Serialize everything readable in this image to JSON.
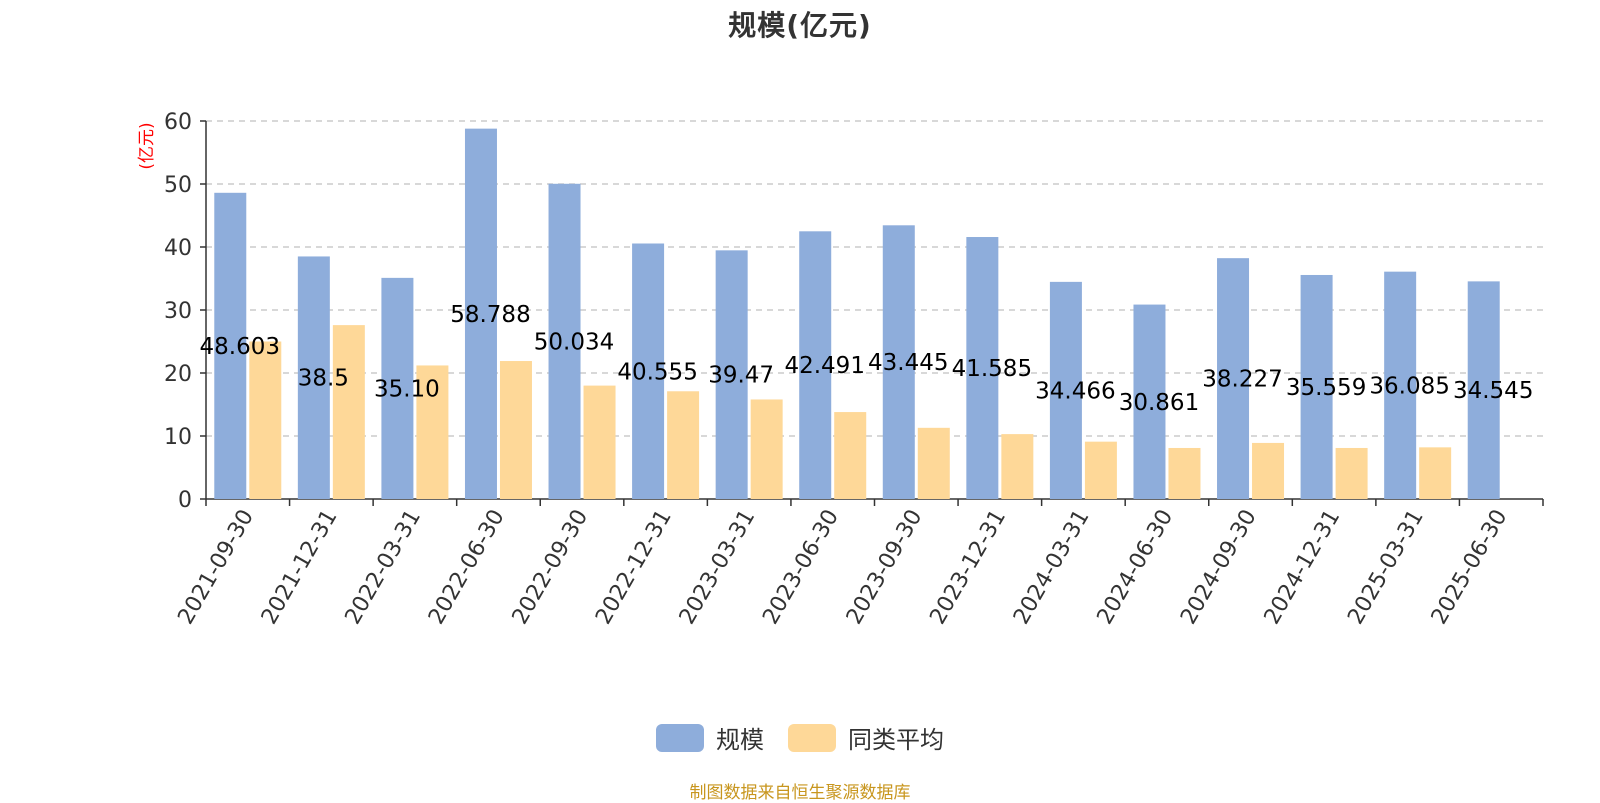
{
  "chart_data": {
    "type": "bar",
    "title": "规模(亿元)",
    "ylabel": "(亿元)",
    "ylim": [
      0,
      60
    ],
    "yticks": [
      0,
      10,
      20,
      30,
      40,
      50,
      60
    ],
    "grid": true,
    "legend_position": "bottom",
    "categories": [
      "2021-09-30",
      "2021-12-31",
      "2022-03-31",
      "2022-06-30",
      "2022-09-30",
      "2022-12-31",
      "2023-03-31",
      "2023-06-30",
      "2023-09-30",
      "2023-12-31",
      "2024-03-31",
      "2024-06-30",
      "2024-09-30",
      "2024-12-31",
      "2025-03-31",
      "2025-06-30"
    ],
    "series": [
      {
        "name": "规模",
        "color": "#8EADDB",
        "values": [
          48.603,
          38.5,
          35.1,
          58.788,
          50.034,
          40.555,
          39.47,
          42.491,
          43.445,
          41.585,
          34.466,
          30.861,
          38.227,
          35.559,
          36.085,
          34.545
        ],
        "labels": [
          "48.603",
          "38.5",
          "35.10",
          "58.788",
          "50.034",
          "40.555",
          "39.47",
          "42.491",
          "43.445",
          "41.585",
          "34.466",
          "30.861",
          "38.227",
          "35.559",
          "36.085",
          "34.545"
        ]
      },
      {
        "name": "同类平均",
        "color": "#FED898",
        "values": [
          25.0,
          27.6,
          21.2,
          21.9,
          18.0,
          17.1,
          15.8,
          13.8,
          11.3,
          10.3,
          9.1,
          8.1,
          8.9,
          8.1,
          8.2,
          null
        ]
      }
    ]
  },
  "footer": {
    "source_note": "制图数据来自恒生聚源数据库",
    "note_color": "#C8961E"
  }
}
